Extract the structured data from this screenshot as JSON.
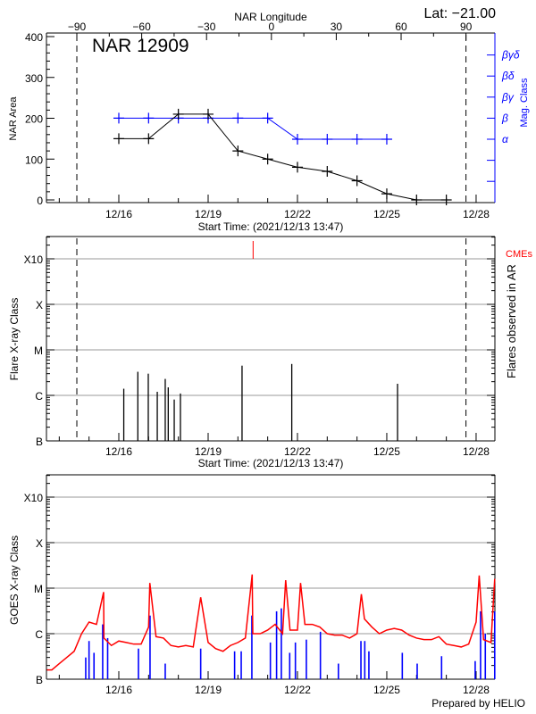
{
  "chart_data": [
    {
      "type": "line",
      "title": "NAR 12909",
      "corner_label": "Lat: −21.00",
      "top_axis": {
        "label": "NAR Longitude",
        "ticks": [
          -90,
          -60,
          -30,
          0,
          30,
          60,
          90
        ]
      },
      "xlabel": "Start Time: (2021/12/13 13:47)",
      "xlim": [
        "2021-12-13 13:47",
        "2021-12-28 15:00"
      ],
      "x_ticks": [
        "2021-12-16 00:00",
        "2021-12-19 00:00",
        "2021-12-22 00:00",
        "2021-12-25 00:00",
        "2021-12-28 00:00"
      ],
      "x_tick_labels": [
        "12/16",
        "12/19",
        "12/22",
        "12/25",
        "12/28"
      ],
      "ylabel": "NAR Area",
      "ylim": [
        0,
        400
      ],
      "y_ticks": [
        0,
        100,
        200,
        300,
        400
      ],
      "y2label": "Mag. Class",
      "y2_categories": [
        "α",
        "β",
        "βγ",
        "βδ",
        "βγδ"
      ],
      "limb_lines": [
        "2021-12-14 14:10",
        "2021-12-27 15:50"
      ],
      "area_series": {
        "color": "#000000",
        "x": [
          "2021-12-16 00:00",
          "2021-12-17 00:00",
          "2021-12-18 00:00",
          "2021-12-19 00:00",
          "2021-12-20 00:00",
          "2021-12-21 00:00",
          "2021-12-22 00:00",
          "2021-12-23 00:00",
          "2021-12-24 00:00",
          "2021-12-25 00:00",
          "2021-12-26 00:00",
          "2021-12-27 00:00"
        ],
        "y": [
          150,
          150,
          210,
          210,
          120,
          100,
          80,
          70,
          47,
          15,
          0,
          0
        ]
      },
      "mag_series": {
        "color": "#0000ff",
        "x": [
          "2021-12-16 00:00",
          "2021-12-17 00:00",
          "2021-12-18 00:00",
          "2021-12-19 00:00",
          "2021-12-20 00:00",
          "2021-12-21 00:00",
          "2021-12-22 00:00",
          "2021-12-23 00:00",
          "2021-12-24 00:00",
          "2021-12-25 00:00"
        ],
        "y": [
          "β",
          "β",
          "β",
          "β",
          "β",
          "β",
          "α",
          "α",
          "α",
          "α"
        ]
      }
    },
    {
      "type": "bar",
      "xlabel": "Start Time: (2021/12/13 13:47)",
      "x_tick_labels": [
        "12/16",
        "12/19",
        "12/22",
        "12/25",
        "12/28"
      ],
      "ylabel": "Flare X-ray Class",
      "y2label": "Flares observed in AR",
      "y_scale": "log",
      "y_tick_labels": [
        "B",
        "C",
        "M",
        "X",
        "X10"
      ],
      "grid": true,
      "limb_lines": [
        "2021-12-14 14:10",
        "2021-12-27 15:50"
      ],
      "flares": {
        "color": "#000000",
        "x": [
          "2021-12-16 04:00",
          "2021-12-16 15:20",
          "2021-12-16 23:45",
          "2021-12-17 07:00",
          "2021-12-17 13:25",
          "2021-12-17 15:50",
          "2021-12-17 20:40",
          "2021-12-18 01:40",
          "2021-12-20 03:20",
          "2021-12-21 19:25",
          "2021-12-25 08:40"
        ],
        "class": [
          "C1.4",
          "C3.3",
          "C3.0",
          "C1.2",
          "C2.3",
          "C1.5",
          "B8.1",
          "C1.1",
          "C4.5",
          "C4.9",
          "C1.8"
        ]
      },
      "cmes": {
        "label": "CMEs",
        "color": "#ff0000",
        "x": [
          "2021-12-20 12:15"
        ]
      }
    },
    {
      "type": "line",
      "ylabel": "GOES X-ray Class",
      "y_scale": "log",
      "y_tick_labels": [
        "B",
        "C",
        "M",
        "X",
        "X10"
      ],
      "x_tick_labels": [
        "12/16",
        "12/19",
        "12/22",
        "12/25",
        "12/28"
      ],
      "grid": true,
      "footer": "Prepared by HELIO",
      "long_channel": {
        "color": "#ff0000",
        "x": [
          "2021-12-13 14:00",
          "2021-12-13 18:00",
          "2021-12-14 00:00",
          "2021-12-14 06:00",
          "2021-12-14 12:00",
          "2021-12-14 18:00",
          "2021-12-15 00:00",
          "2021-12-15 06:00",
          "2021-12-15 11:45",
          "2021-12-15 12:00",
          "2021-12-15 18:00",
          "2021-12-16 00:00",
          "2021-12-16 06:00",
          "2021-12-16 12:00",
          "2021-12-16 18:00",
          "2021-12-17 00:00",
          "2021-12-17 01:00",
          "2021-12-17 06:00",
          "2021-12-17 12:00",
          "2021-12-17 18:00",
          "2021-12-18 00:00",
          "2021-12-18 06:00",
          "2021-12-18 12:00",
          "2021-12-18 18:00",
          "2021-12-19 00:00",
          "2021-12-19 06:00",
          "2021-12-19 12:00",
          "2021-12-19 18:00",
          "2021-12-20 00:00",
          "2021-12-20 06:00",
          "2021-12-20 11:30",
          "2021-12-20 12:00",
          "2021-12-20 18:00",
          "2021-12-21 00:00",
          "2021-12-21 06:00",
          "2021-12-21 12:00",
          "2021-12-21 14:30",
          "2021-12-21 18:00",
          "2021-12-22 00:00",
          "2021-12-22 02:30",
          "2021-12-22 06:00",
          "2021-12-22 12:00",
          "2021-12-22 18:00",
          "2021-12-23 00:00",
          "2021-12-23 06:00",
          "2021-12-23 12:00",
          "2021-12-23 18:00",
          "2021-12-24 00:00",
          "2021-12-24 03:30",
          "2021-12-24 06:00",
          "2021-12-24 12:00",
          "2021-12-24 18:00",
          "2021-12-25 00:00",
          "2021-12-25 06:00",
          "2021-12-25 12:00",
          "2021-12-25 18:00",
          "2021-12-26 00:00",
          "2021-12-26 06:00",
          "2021-12-26 12:00",
          "2021-12-26 18:00",
          "2021-12-27 00:00",
          "2021-12-27 06:00",
          "2021-12-27 12:00",
          "2021-12-27 18:00",
          "2021-12-28 00:00",
          "2021-12-28 02:30",
          "2021-12-28 06:00",
          "2021-12-28 12:00",
          "2021-12-28 15:00"
        ],
        "y": [
          1.6e-07,
          1.6e-07,
          2.2e-07,
          3e-07,
          4.1e-07,
          1e-06,
          1.8e-06,
          1.6e-06,
          8.2e-06,
          8e-07,
          5.5e-07,
          6.9e-07,
          6.4e-07,
          5.9e-07,
          5.9e-07,
          1.4e-06,
          1.3e-05,
          8.6e-07,
          8e-07,
          5.5e-07,
          5.1e-07,
          5.5e-07,
          5.1e-07,
          6.3e-06,
          6.4e-07,
          4.7e-07,
          4.1e-07,
          5.5e-07,
          6.4e-07,
          8e-07,
          2e-05,
          1e-06,
          1e-06,
          1.2e-06,
          1.6e-06,
          1e-06,
          1.5e-05,
          1.2e-06,
          1.2e-06,
          1.3e-05,
          1.6e-06,
          1.6e-06,
          1.4e-06,
          1e-06,
          9.3e-07,
          9.3e-07,
          8e-07,
          1e-06,
          7.4e-06,
          2.1e-06,
          1.4e-06,
          1e-06,
          1.2e-06,
          1.3e-06,
          1.2e-06,
          9.3e-07,
          8e-07,
          7.4e-07,
          7.4e-07,
          8.6e-07,
          5.9e-07,
          5.5e-07,
          5.1e-07,
          5.9e-07,
          1.8e-06,
          1.9e-05,
          7.4e-07,
          6.4e-07,
          1.6e-05
        ]
      },
      "short_channel": {
        "color": "#0000ff",
        "x": [
          "2021-12-14 21:20",
          "2021-12-15 00:00",
          "2021-12-15 04:00",
          "2021-12-15 11:00",
          "2021-12-15 15:00",
          "2021-12-16 15:50",
          "2021-12-17 01:10",
          "2021-12-17 13:25",
          "2021-12-18 18:00",
          "2021-12-19 21:20",
          "2021-12-20 02:40",
          "2021-12-20 11:15",
          "2021-12-21 02:10",
          "2021-12-21 07:10",
          "2021-12-21 11:00",
          "2021-12-21 17:45",
          "2021-12-21 22:20",
          "2021-12-22 07:10",
          "2021-12-22 18:30",
          "2021-12-23 09:00",
          "2021-12-24 03:10",
          "2021-12-24 06:15",
          "2021-12-24 09:35",
          "2021-12-25 12:30",
          "2021-12-26 00:30",
          "2021-12-26 20:10",
          "2021-12-27 23:15",
          "2021-12-28 03:35",
          "2021-12-28 07:25",
          "2021-12-28 15:00"
        ],
        "y": [
          3e-07,
          6.9e-07,
          3.8e-07,
          1.6e-06,
          8e-07,
          4.7e-07,
          2.5e-06,
          2.2e-07,
          4.7e-07,
          4.1e-07,
          4.1e-07,
          2.5e-06,
          6.4e-07,
          3.1e-06,
          3.6e-06,
          3.8e-07,
          6.4e-07,
          7.4e-07,
          1.1e-06,
          2.2e-07,
          6.9e-07,
          6.9e-07,
          4.1e-07,
          3.8e-07,
          2.2e-07,
          3.2e-07,
          2.5e-07,
          3.1e-06,
          1e-06,
          3.1e-06
        ]
      }
    }
  ]
}
